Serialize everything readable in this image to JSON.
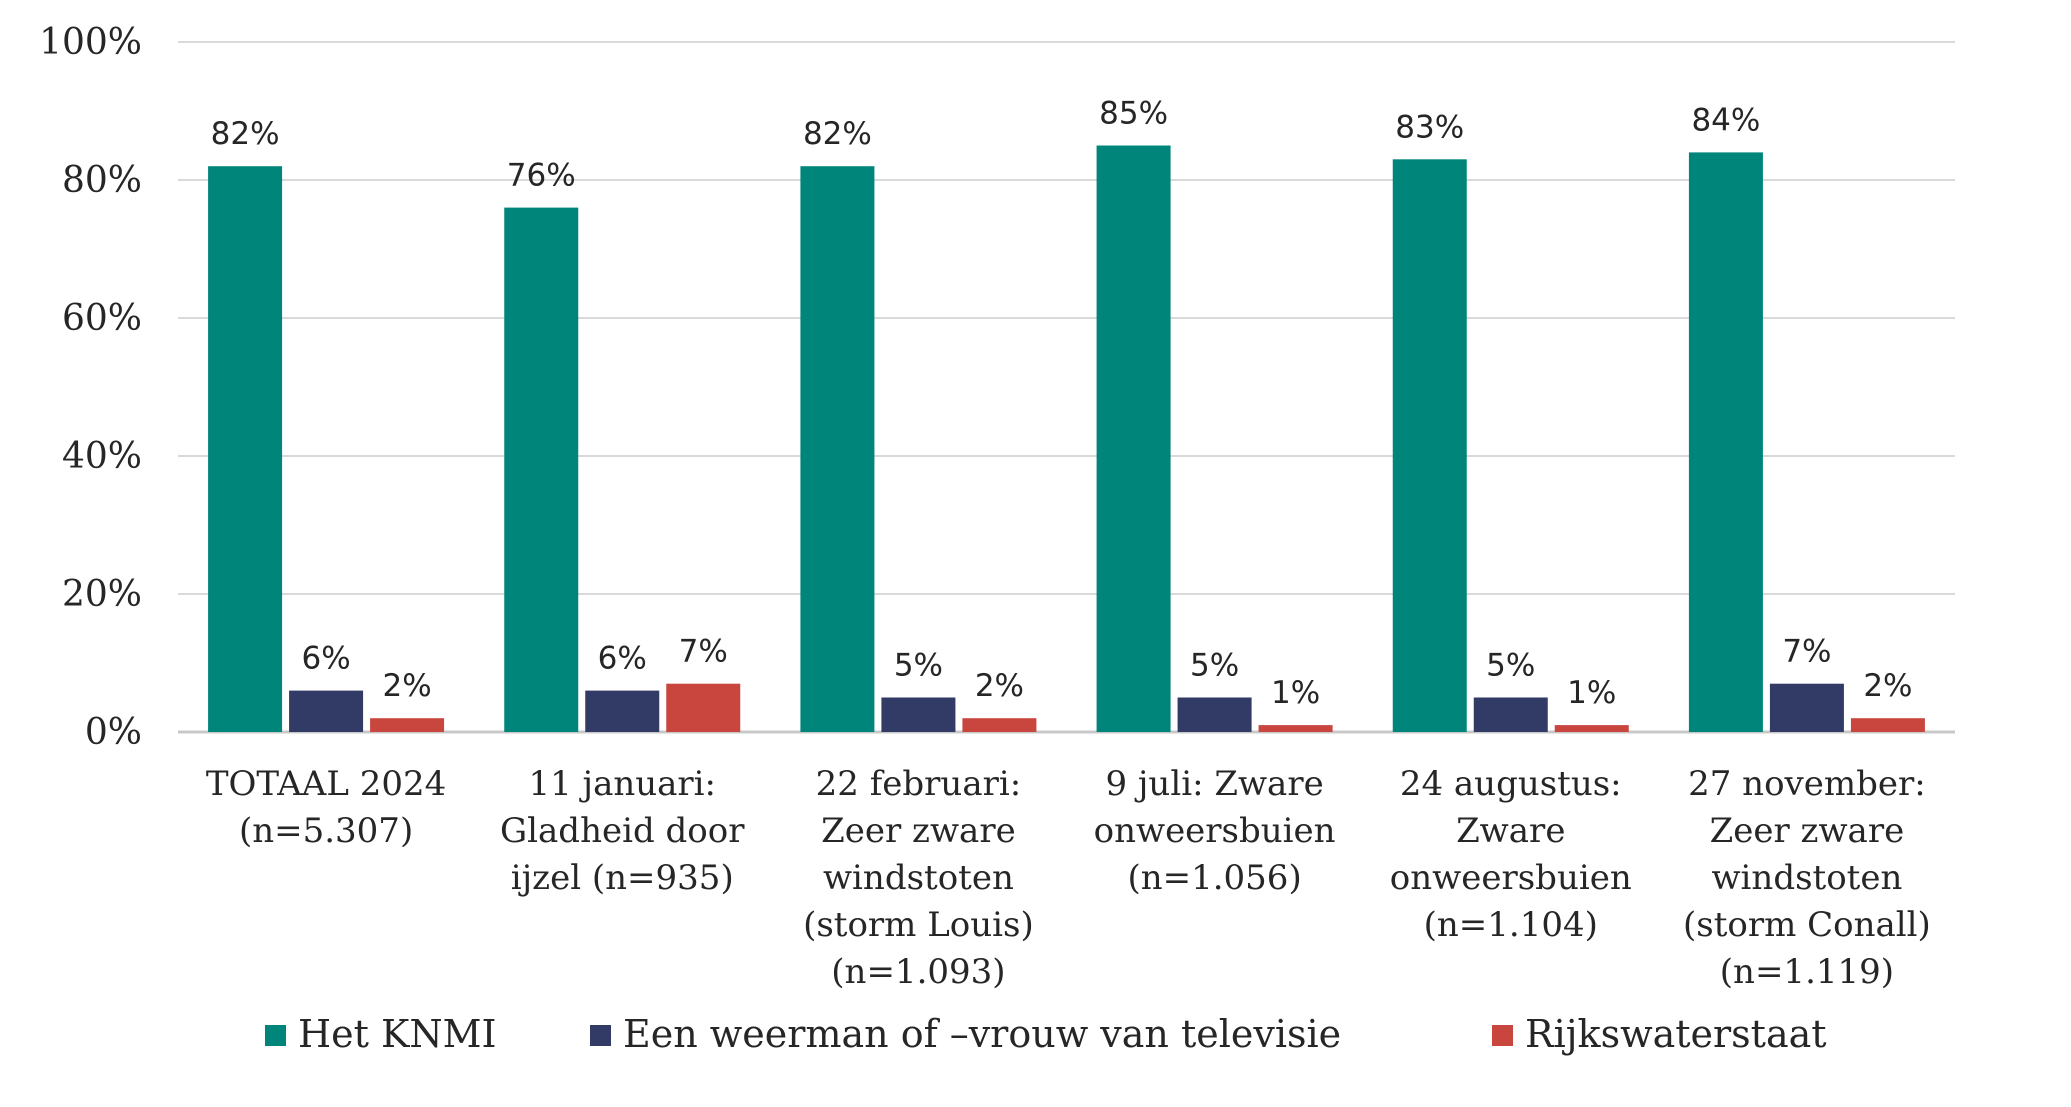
{
  "chart_data": {
    "type": "bar",
    "title": "",
    "xlabel": "",
    "ylabel": "",
    "ylim": [
      0,
      100
    ],
    "yticks": [
      0,
      20,
      40,
      60,
      80,
      100
    ],
    "ytick_labels": [
      "0%",
      "20%",
      "40%",
      "60%",
      "80%",
      "100%"
    ],
    "grid": true,
    "legend_position": "bottom",
    "categories": [
      [
        "TOTAAL 2024",
        "(n=5.307)"
      ],
      [
        "11 januari:",
        "Gladheid door",
        "ijzel (n=935)"
      ],
      [
        "22 februari:",
        "Zeer zware",
        "windstoten",
        "(storm Louis)",
        "(n=1.093)"
      ],
      [
        "9 juli: Zware",
        "onweersbuien",
        "(n=1.056)"
      ],
      [
        "24 augustus:",
        "Zware",
        "onweersbuien",
        "(n=1.104)"
      ],
      [
        "27 november:",
        "Zeer zware",
        "windstoten",
        "(storm Conall)",
        "(n=1.119)"
      ]
    ],
    "series": [
      {
        "name": "Het KNMI",
        "color": "#00857a",
        "values": [
          82,
          76,
          82,
          85,
          83,
          84
        ],
        "labels": [
          "82%",
          "76%",
          "82%",
          "85%",
          "83%",
          "84%"
        ]
      },
      {
        "name": "Een weerman of –vrouw van televisie",
        "color": "#323a66",
        "values": [
          6,
          6,
          5,
          5,
          5,
          7
        ],
        "labels": [
          "6%",
          "6%",
          "5%",
          "5%",
          "5%",
          "7%"
        ]
      },
      {
        "name": "Rijkswaterstaat",
        "color": "#c9463f",
        "values": [
          2,
          7,
          2,
          1,
          1,
          2
        ],
        "labels": [
          "2%",
          "7%",
          "2%",
          "1%",
          "1%",
          "2%"
        ]
      }
    ]
  }
}
